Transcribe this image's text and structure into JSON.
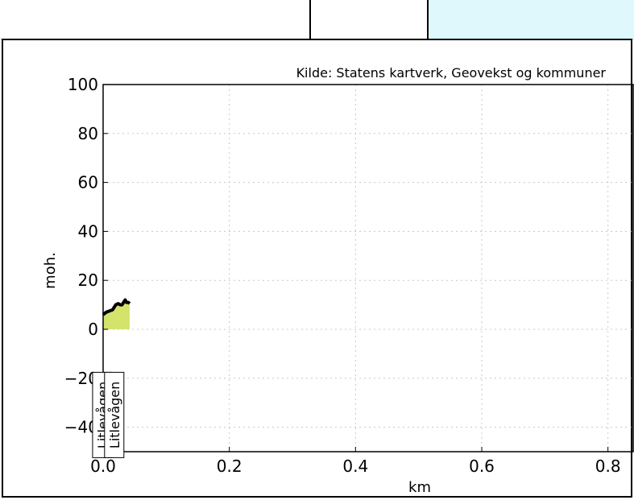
{
  "toolbar": {
    "cells": [
      {
        "color": "#ffffff"
      },
      {
        "color": "#ffffff"
      },
      {
        "color": "#dff8fc"
      }
    ]
  },
  "chart_data": {
    "type": "area",
    "title": "Kilde: Statens kartverk, Geovekst og kommuner",
    "xlabel": "km",
    "ylabel": "moh.",
    "xlim": [
      0.0,
      0.84
    ],
    "ylim": [
      -50,
      100
    ],
    "x_ticks": [
      0.0,
      0.2,
      0.4,
      0.6,
      0.8
    ],
    "x_tick_labels": [
      "0.0",
      "0.2",
      "0.4",
      "0.6",
      "0.8"
    ],
    "y_ticks": [
      -40,
      -20,
      0,
      20,
      40,
      60,
      80,
      100
    ],
    "y_tick_labels": [
      "−40",
      "−20",
      "0",
      "20",
      "40",
      "60",
      "80",
      "100"
    ],
    "grid": true,
    "line_color": "#000000",
    "fill_color": "#d4e36c",
    "series": [
      {
        "x": [
          0.0,
          0.005,
          0.01,
          0.015,
          0.02,
          0.024,
          0.027,
          0.03,
          0.035,
          0.037,
          0.04,
          0.042
        ],
        "y": [
          6,
          7,
          7.5,
          8,
          10,
          10.5,
          10,
          10,
          12,
          11,
          11,
          10.5
        ]
      }
    ],
    "annotations": [
      {
        "text": "Litlevågen",
        "x": 0.005,
        "y": -35
      },
      {
        "text": "Litlevågen",
        "x": 0.024,
        "y": -35
      }
    ]
  }
}
